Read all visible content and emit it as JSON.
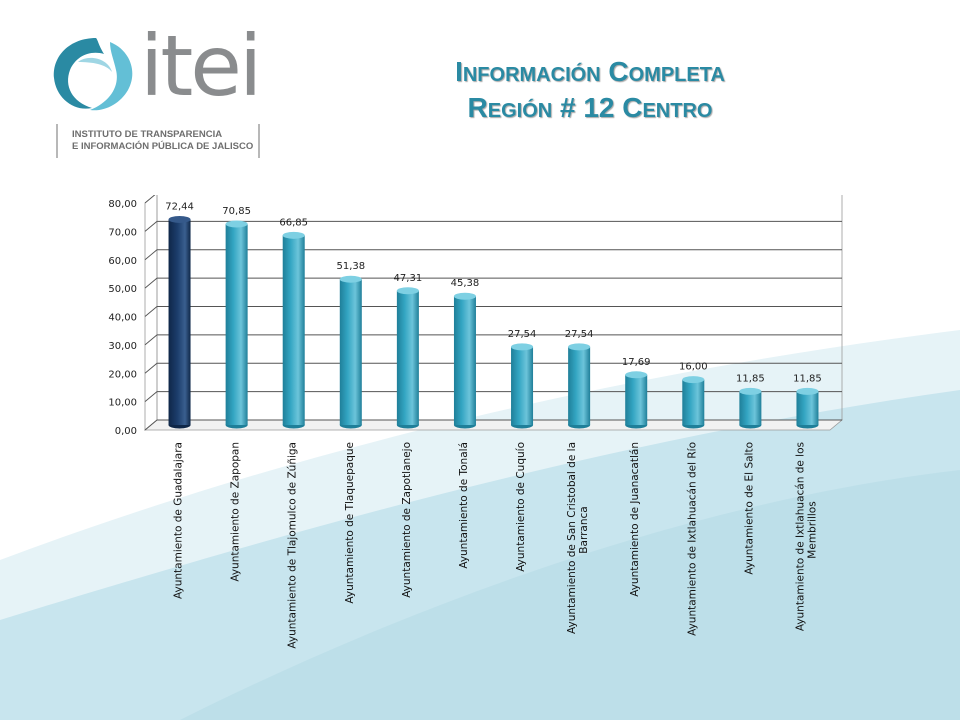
{
  "header": {
    "logo_text": "itei",
    "logo_subtitle_line1": "INSTITUTO DE TRANSPARENCIA",
    "logo_subtitle_line2": "E INFORMACIÓN PÚBLICA DE JALISCO",
    "title_line1": "Información Completa",
    "title_line2": "Región # 12 Centro"
  },
  "colors": {
    "title": "#2a8aa3",
    "bar_primary": "#1c3d6b",
    "bar_default": "#33a5c2",
    "background_wave": "#c8e5ee"
  },
  "chart_data": {
    "type": "bar",
    "title": "",
    "xlabel": "",
    "ylabel": "",
    "ylim": [
      0,
      80
    ],
    "yticks": [
      "0,00",
      "10,00",
      "20,00",
      "30,00",
      "40,00",
      "50,00",
      "60,00",
      "70,00",
      "80,00"
    ],
    "grid": true,
    "categories": [
      "Ayuntamiento de Guadalajara",
      "Ayuntamiento de Zapopan",
      "Ayuntamiento de Tlajomulco de Zúñiga",
      "Ayuntamiento de Tlaquepaque",
      "Ayuntamiento de Zapotlanejo",
      "Ayuntamiento de Tonalá",
      "Ayuntamiento de Cuquío",
      "Ayuntamiento de San Cristobal de la Barranca",
      "Ayuntamiento de Juanacatlán",
      "Ayuntamiento de Ixtlahuacán del Río",
      "Ayuntamiento de El Salto",
      "Ayuntamiento de Ixtlahuacán de los Membrillos"
    ],
    "category_lines": [
      [
        "Ayuntamiento de Guadalajara"
      ],
      [
        "Ayuntamiento de Zapopan"
      ],
      [
        "Ayuntamiento de Tlajomulco de Zúñiga"
      ],
      [
        "Ayuntamiento de Tlaquepaque"
      ],
      [
        "Ayuntamiento de Zapotlanejo"
      ],
      [
        "Ayuntamiento de Tonalá"
      ],
      [
        "Ayuntamiento de Cuquío"
      ],
      [
        "Ayuntamiento de San Cristobal de la",
        "Barranca"
      ],
      [
        "Ayuntamiento de Juanacatlán"
      ],
      [
        "Ayuntamiento de Ixtlahuacán del Río"
      ],
      [
        "Ayuntamiento de El Salto"
      ],
      [
        "Ayuntamiento de Ixtlahuacán de los",
        "Membrillos"
      ]
    ],
    "values": [
      72.44,
      70.85,
      66.85,
      51.38,
      47.31,
      45.38,
      27.54,
      27.54,
      17.69,
      16.0,
      11.85,
      11.85
    ],
    "value_labels": [
      "72,44",
      "70,85",
      "66,85",
      "51,38",
      "47,31",
      "45,38",
      "27,54",
      "27,54",
      "17,69",
      "16,00",
      "11,85",
      "11,85"
    ]
  }
}
